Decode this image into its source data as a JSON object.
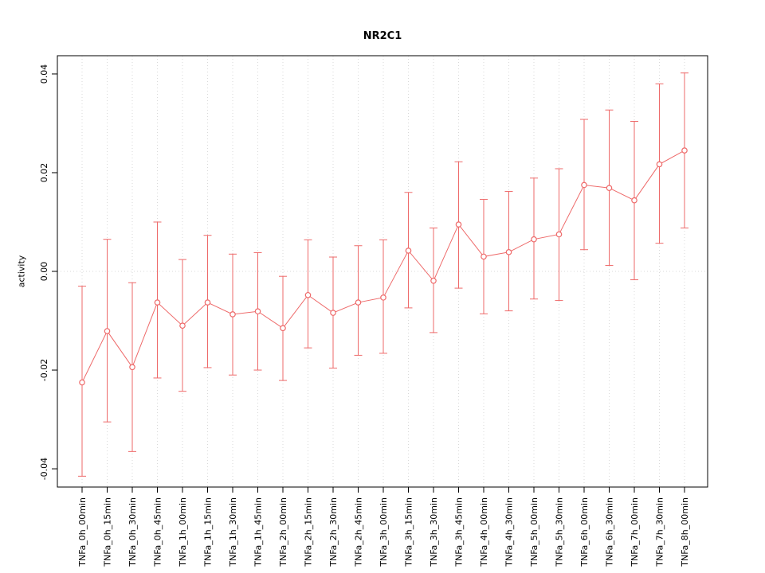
{
  "chart_data": {
    "type": "line",
    "title": "NR2C1",
    "xlabel": "",
    "ylabel": "activity",
    "ylim": [
      -0.0437,
      0.0437
    ],
    "yticks": [
      -0.04,
      -0.02,
      0.0,
      0.02,
      0.04
    ],
    "ytick_labels": [
      "-0.04",
      "-0.02",
      "0.00",
      "0.02",
      "0.04"
    ],
    "grid": "dotted vertical gridline at each category, dotted horizontal line at y=0",
    "legend": "none",
    "series_color": "#ee6a6a",
    "grid_color": "#d9d9d9",
    "axis_color": "#000000",
    "categories": [
      "TNFa_0h_00min",
      "TNFa_0h_15min",
      "TNFa_0h_30min",
      "TNFa_0h_45min",
      "TNFa_1h_00min",
      "TNFa_1h_15min",
      "TNFa_1h_30min",
      "TNFa_1h_45min",
      "TNFa_2h_00min",
      "TNFa_2h_15min",
      "TNFa_2h_30min",
      "TNFa_2h_45min",
      "TNFa_3h_00min",
      "TNFa_3h_15min",
      "TNFa_3h_30min",
      "TNFa_3h_45min",
      "TNFa_4h_00min",
      "TNFa_4h_30min",
      "TNFa_5h_00min",
      "TNFa_5h_30min",
      "TNFa_6h_00min",
      "TNFa_6h_30min",
      "TNFa_7h_00min",
      "TNFa_7h_30min",
      "TNFa_8h_00min"
    ],
    "series": [
      {
        "name": "activity",
        "values": [
          -0.0225,
          -0.0121,
          -0.0194,
          -0.0063,
          -0.011,
          -0.0063,
          -0.0087,
          -0.0081,
          -0.0115,
          -0.0048,
          -0.0084,
          -0.0063,
          -0.0053,
          0.0042,
          -0.0019,
          0.0095,
          0.003,
          0.0039,
          0.0065,
          0.0075,
          0.0175,
          0.0169,
          0.0144,
          0.0217,
          0.0245
        ],
        "upper": [
          -0.003,
          0.0065,
          -0.0023,
          0.01,
          0.0024,
          0.0073,
          0.0035,
          0.0038,
          -0.001,
          0.0064,
          0.0029,
          0.0052,
          0.0064,
          0.016,
          0.0088,
          0.0222,
          0.0146,
          0.0162,
          0.0189,
          0.0208,
          0.0308,
          0.0327,
          0.0304,
          0.038,
          0.0402
        ],
        "lower": [
          -0.0415,
          -0.0305,
          -0.0365,
          -0.0216,
          -0.0243,
          -0.0195,
          -0.021,
          -0.02,
          -0.0221,
          -0.0155,
          -0.0196,
          -0.017,
          -0.0166,
          -0.0074,
          -0.0124,
          -0.0034,
          -0.0086,
          -0.008,
          -0.0056,
          -0.0059,
          0.0044,
          0.0012,
          -0.0017,
          0.0057,
          0.0088
        ]
      }
    ]
  }
}
